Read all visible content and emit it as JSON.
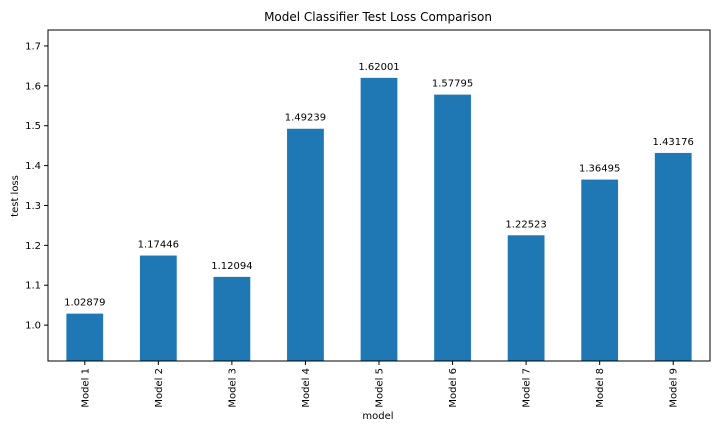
{
  "chart_data": {
    "type": "bar",
    "title": "Model Classifier Test Loss Comparison",
    "xlabel": "model",
    "ylabel": "test loss",
    "categories": [
      "Model 1",
      "Model 2",
      "Model 3",
      "Model 4",
      "Model 5",
      "Model 6",
      "Model 7",
      "Model 8",
      "Model 9"
    ],
    "values": [
      1.02879,
      1.17446,
      1.12094,
      1.49239,
      1.62001,
      1.57795,
      1.22523,
      1.36495,
      1.43176
    ],
    "data_labels": [
      "1.02879",
      "1.17446",
      "1.12094",
      "1.49239",
      "1.62001",
      "1.57795",
      "1.22523",
      "1.36495",
      "1.43176"
    ],
    "ylim": [
      0.91,
      1.74
    ],
    "yticks": [
      1.0,
      1.1,
      1.2,
      1.3,
      1.4,
      1.5,
      1.6,
      1.7
    ],
    "ytick_labels": [
      "1.0",
      "1.1",
      "1.2",
      "1.3",
      "1.4",
      "1.5",
      "1.6",
      "1.7"
    ],
    "bar_color": "#1f77b4",
    "grid": false,
    "legend": "none"
  }
}
